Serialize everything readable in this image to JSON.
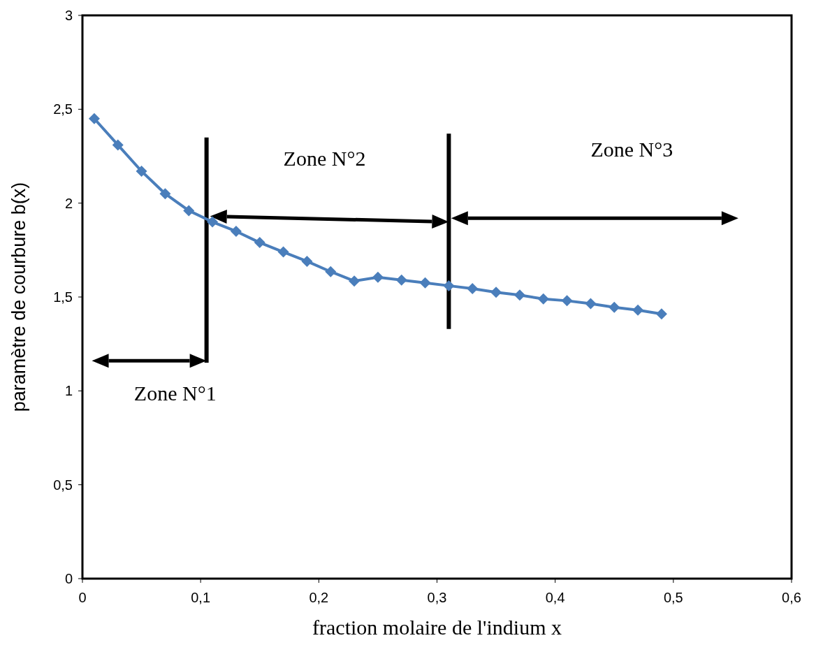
{
  "chart_data": {
    "type": "line",
    "xlabel": "fraction molaire de l'indium x",
    "ylabel": "paramètre de courbure b(x)",
    "x": [
      0.01,
      0.03,
      0.05,
      0.07,
      0.09,
      0.11,
      0.13,
      0.15,
      0.17,
      0.19,
      0.21,
      0.23,
      0.25,
      0.27,
      0.29,
      0.31,
      0.33,
      0.35,
      0.37,
      0.39,
      0.41,
      0.43,
      0.45,
      0.47,
      0.49
    ],
    "series": [
      {
        "color": "#4a7ebb",
        "values": [
          2.45,
          2.31,
          2.17,
          2.05,
          1.96,
          1.9,
          1.85,
          1.79,
          1.74,
          1.69,
          1.635,
          1.585,
          1.605,
          1.59,
          1.575,
          1.56,
          1.545,
          1.525,
          1.51,
          1.49,
          1.48,
          1.465,
          1.445,
          1.43,
          1.41
        ]
      }
    ],
    "xlim": [
      0,
      0.6
    ],
    "xticks": [
      {
        "value": 0,
        "label": "0"
      },
      {
        "value": 0.1,
        "label": "0,1"
      },
      {
        "value": 0.2,
        "label": "0,2"
      },
      {
        "value": 0.3,
        "label": "0,3"
      },
      {
        "value": 0.4,
        "label": "0,4"
      },
      {
        "value": 0.5,
        "label": "0,5"
      },
      {
        "value": 0.6,
        "label": "0,6"
      }
    ],
    "ylim": [
      0,
      3
    ],
    "yticks": [
      {
        "value": 0,
        "label": "0"
      },
      {
        "value": 0.5,
        "label": "0,5"
      },
      {
        "value": 1,
        "label": "1"
      },
      {
        "value": 1.5,
        "label": "1,5"
      },
      {
        "value": 2,
        "label": "2"
      },
      {
        "value": 2.5,
        "label": "2,5"
      },
      {
        "value": 3,
        "label": "3"
      }
    ],
    "marker": "diamond",
    "line_style": "solid",
    "grid": false,
    "annotations": [
      "Zone N°1",
      "Zone N°2",
      "Zone N°3"
    ]
  }
}
